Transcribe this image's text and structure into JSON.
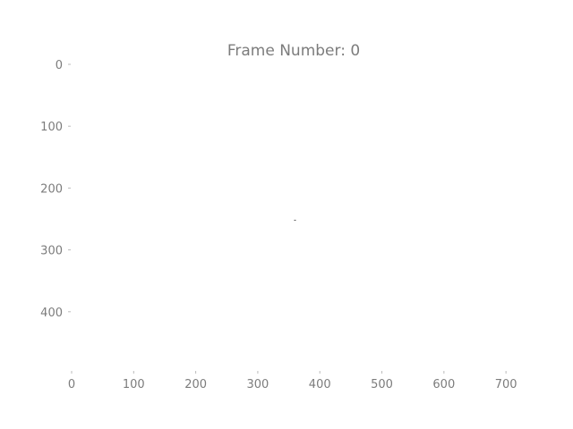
{
  "chart_data": {
    "type": "scatter",
    "title": "Frame Number: 0",
    "xlabel": "",
    "ylabel": "",
    "xlim": [
      0,
      720
    ],
    "ylim": [
      0,
      500
    ],
    "y_inverted": true,
    "x_ticks": [
      "0",
      "100",
      "200",
      "300",
      "400",
      "500",
      "600",
      "700"
    ],
    "y_ticks": [
      "0",
      "100",
      "200",
      "300",
      "400"
    ],
    "grid": false,
    "points": [
      {
        "x": 360,
        "y": 252
      }
    ],
    "colors": {
      "text": "#666666",
      "point": "#555555"
    }
  }
}
